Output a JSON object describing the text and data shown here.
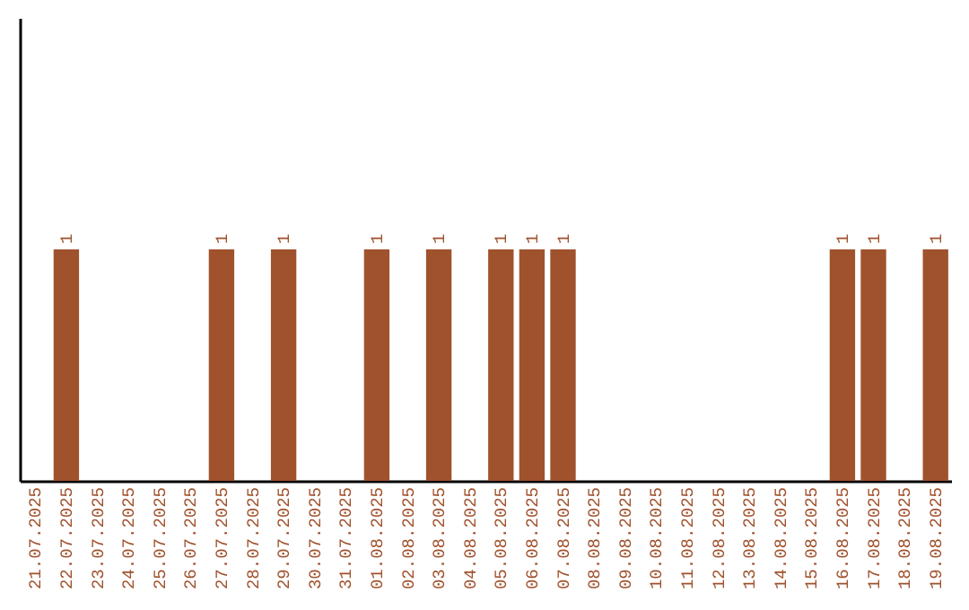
{
  "chart_data": {
    "type": "bar",
    "categories": [
      "21.07.2025",
      "22.07.2025",
      "23.07.2025",
      "24.07.2025",
      "25.07.2025",
      "26.07.2025",
      "27.07.2025",
      "28.07.2025",
      "29.07.2025",
      "30.07.2025",
      "31.07.2025",
      "01.08.2025",
      "02.08.2025",
      "03.08.2025",
      "04.08.2025",
      "05.08.2025",
      "06.08.2025",
      "07.08.2025",
      "08.08.2025",
      "09.08.2025",
      "10.08.2025",
      "11.08.2025",
      "12.08.2025",
      "13.08.2025",
      "14.08.2025",
      "15.08.2025",
      "16.08.2025",
      "17.08.2025",
      "18.08.2025",
      "19.08.2025"
    ],
    "values": [
      0,
      1,
      0,
      0,
      0,
      0,
      1,
      0,
      1,
      0,
      0,
      1,
      0,
      1,
      0,
      1,
      1,
      1,
      0,
      0,
      0,
      0,
      0,
      0,
      0,
      0,
      1,
      1,
      0,
      1
    ],
    "value_labels": [
      null,
      "1",
      null,
      null,
      null,
      null,
      "1",
      null,
      "1",
      null,
      null,
      "1",
      null,
      "1",
      null,
      "1",
      "1",
      "1",
      null,
      null,
      null,
      null,
      null,
      null,
      null,
      null,
      "1",
      "1",
      null,
      "1"
    ],
    "color": "#a0522d",
    "ylim": [
      0,
      2
    ],
    "tick_labels": "x",
    "grid": false
  }
}
